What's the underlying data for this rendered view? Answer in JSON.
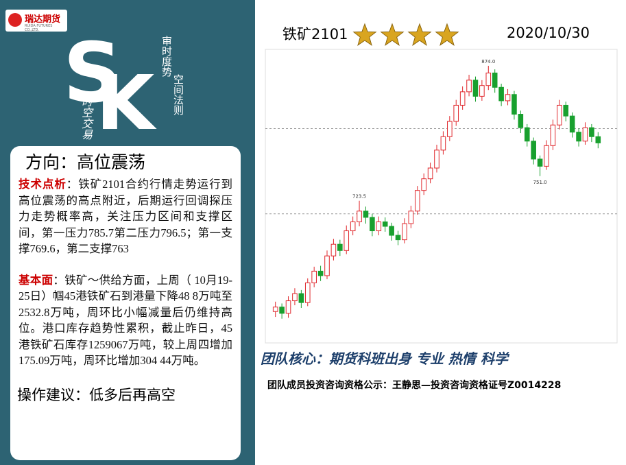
{
  "header": {
    "logo": "瑞达期货",
    "logo_sub": "RUIDA FUTURES CO.,LTD.",
    "slogan_1": "审时度势",
    "slogan_2": "空间法则",
    "brand": "时空交易"
  },
  "panel": {
    "direction": "方向：高位震荡",
    "tech_label": "技术点析",
    "tech_text": "：铁矿2101合约行情走势运行到高位震荡的高点附近，后期运行回调探压力走势概率高，关注压力区间和支撑区间，第一压力785.7第二压力796.5；第一支撑769.6，第二支撑763",
    "fund_label": "基本面",
    "fund_text": "：铁矿～供给方面，上周（ 10月19-25日）帼45港铁矿石到港量下降48 8万吨至2532.8万吨，周环比小幅减量后仍维持高位。港口库存趋势性累积，截止昨日，45港铁矿石库存1259067万吨，较上周四增加175.09万吨，周环比增加304 44万吨。",
    "advice": "操作建议：低多后再高空"
  },
  "chart_data": {
    "type": "candlestick",
    "title": "铁矿2101",
    "date": "2020/10/30",
    "stars": 4,
    "open": [
      600,
      605,
      598,
      612,
      620,
      610,
      632,
      645,
      640,
      662,
      675,
      668,
      690,
      700,
      712,
      705,
      690,
      700,
      695,
      685,
      680,
      698,
      712,
      735,
      748,
      760,
      780,
      795,
      812,
      830,
      845,
      858,
      840,
      852,
      866,
      850,
      835,
      842,
      820,
      805,
      790,
      770,
      762,
      785,
      808,
      830,
      818,
      800,
      790,
      805,
      795
    ],
    "high": [
      611,
      609,
      617,
      626,
      624,
      637,
      650,
      651,
      668,
      681,
      680,
      696,
      706,
      723.5,
      717,
      709,
      706,
      705,
      699,
      690,
      704,
      718,
      740,
      754,
      766,
      786,
      801,
      818,
      836,
      851,
      864,
      862,
      858,
      874,
      870,
      854,
      848,
      846,
      824,
      809,
      794,
      774,
      791,
      814,
      836,
      834,
      822,
      804,
      811,
      809,
      800
    ],
    "low": [
      594,
      592,
      593,
      607,
      604,
      606,
      627,
      634,
      636,
      657,
      662,
      664,
      685,
      695,
      698,
      684,
      685,
      689,
      679,
      674,
      676,
      693,
      708,
      730,
      743,
      755,
      775,
      790,
      807,
      825,
      840,
      834,
      835,
      847,
      844,
      829,
      830,
      814,
      799,
      784,
      764,
      751,
      758,
      780,
      803,
      812,
      794,
      784,
      786,
      789,
      782
    ],
    "close": [
      605,
      598,
      612,
      620,
      610,
      632,
      645,
      640,
      662,
      675,
      668,
      690,
      700,
      712,
      705,
      690,
      700,
      695,
      685,
      680,
      698,
      712,
      735,
      748,
      760,
      780,
      795,
      812,
      830,
      845,
      858,
      840,
      852,
      866,
      850,
      835,
      842,
      820,
      805,
      790,
      770,
      762,
      785,
      808,
      830,
      818,
      800,
      790,
      805,
      795,
      788
    ],
    "annotations": [
      {
        "value": 874,
        "label": "874.0"
      },
      {
        "value": 723.5,
        "label": "723.5"
      },
      {
        "value": 751,
        "label": "751.0"
      }
    ],
    "hlines": [
      709,
      804
    ],
    "ylim": [
      565,
      890
    ],
    "up_color": "#e0262b",
    "down_color": "#18a02e"
  },
  "footer": {
    "core": "团队核心：期货科班出身  专业  热情  科学",
    "qualification": "团队成员投资咨询资格公示：王静思—投资咨询资格证号Z0014228"
  }
}
